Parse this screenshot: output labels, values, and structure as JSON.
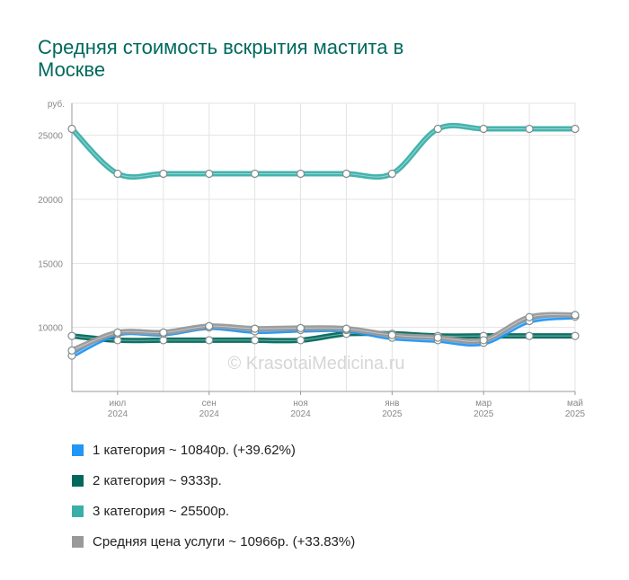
{
  "title": "Средняя стоимость вскрытия мастита в Москве",
  "watermark": "© KrasotaiMedicina.ru",
  "chart_data": {
    "type": "line",
    "ylabel": "руб.",
    "ylim": [
      5000,
      27500
    ],
    "yticks": [
      10000,
      15000,
      20000,
      25000
    ],
    "grid": true,
    "x": [
      "2024-06",
      "2024-07",
      "2024-08",
      "2024-09",
      "2024-10",
      "2024-11",
      "2024-12",
      "2025-01",
      "2025-02",
      "2025-03",
      "2025-04",
      "2025-05"
    ],
    "xticks": [
      {
        "index": 1,
        "month": "июл",
        "year": "2024"
      },
      {
        "index": 3,
        "month": "сен",
        "year": "2024"
      },
      {
        "index": 5,
        "month": "ноя",
        "year": "2024"
      },
      {
        "index": 7,
        "month": "янв",
        "year": "2025"
      },
      {
        "index": 9,
        "month": "мар",
        "year": "2025"
      },
      {
        "index": 11,
        "month": "май",
        "year": "2025"
      }
    ],
    "series": [
      {
        "name": "3 категория",
        "color": "#3aafa9",
        "values": [
          25500,
          22000,
          22000,
          22000,
          22000,
          22000,
          22000,
          22000,
          25500,
          25500,
          25500,
          25500
        ]
      },
      {
        "name": "2 категория",
        "color": "#00695c",
        "values": [
          9333,
          9000,
          9000,
          9000,
          9000,
          9000,
          9500,
          9500,
          9333,
          9333,
          9333,
          9333
        ]
      },
      {
        "name": "1 категория",
        "color": "#2196f3",
        "values": [
          7800,
          9500,
          9500,
          10000,
          9700,
          9800,
          9800,
          9200,
          9000,
          8800,
          10500,
          10840
        ]
      },
      {
        "name": "Средняя цена услуги",
        "color": "#999999",
        "values": [
          8200,
          9600,
          9600,
          10100,
          9900,
          9950,
          9900,
          9400,
          9200,
          9000,
          10800,
          10966
        ]
      }
    ]
  },
  "legend": [
    {
      "label": "1 категория ~ 10840р. (+39.62%)",
      "color": "#2196f3"
    },
    {
      "label": "2 категория ~ 9333р.",
      "color": "#00695c"
    },
    {
      "label": "3 категория ~ 25500р.",
      "color": "#3aafa9"
    },
    {
      "label": "Средняя цена услуги ~ 10966р. (+33.83%)",
      "color": "#999999"
    }
  ]
}
